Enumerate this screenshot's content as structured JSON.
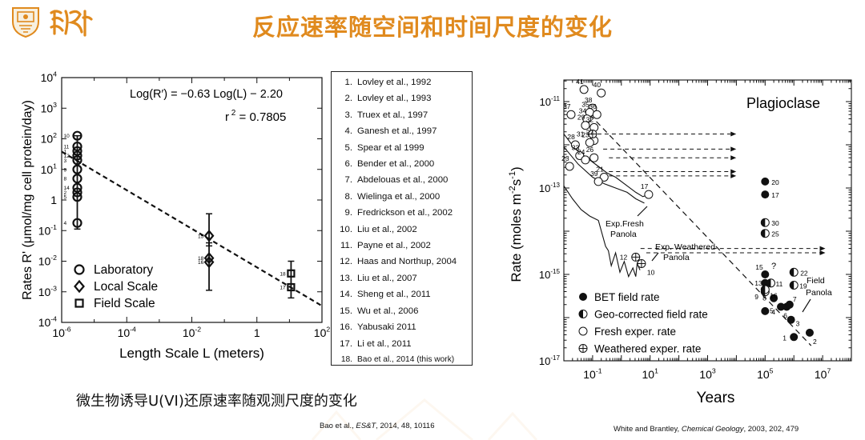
{
  "slide": {
    "title": "反应速率随空间和时间尺度的变化",
    "caption": "微生物诱导U(VI)还原速率随观测尺度的变化",
    "cite_left": {
      "prefix": "Bao et al., ",
      "journal": "ES&T",
      "suffix": ", 2014, 48, 10116"
    },
    "cite_right": {
      "prefix": "White and Brantley, ",
      "journal": "Chemical Geology",
      "suffix": ", 2003, 202, 479"
    }
  },
  "references": [
    {
      "num": "1.",
      "text": "Lovley et al., 1992"
    },
    {
      "num": "2.",
      "text": "Lovley et al., 1993"
    },
    {
      "num": "3.",
      "text": "Truex et al., 1997"
    },
    {
      "num": "4.",
      "text": "Ganesh et al., 1997"
    },
    {
      "num": "5.",
      "text": "Spear et al 1999"
    },
    {
      "num": "6.",
      "text": "Bender et al., 2000"
    },
    {
      "num": "7.",
      "text": "Abdelouas et al., 2000"
    },
    {
      "num": "8.",
      "text": "Wielinga et al., 2000"
    },
    {
      "num": "9.",
      "text": "Fredrickson et al., 2002"
    },
    {
      "num": "10.",
      "text": "Liu et al., 2002"
    },
    {
      "num": "11.",
      "text": "Payne et al., 2002"
    },
    {
      "num": "12.",
      "text": "Haas and Northup, 2004"
    },
    {
      "num": "13.",
      "text": "Liu et al., 2007"
    },
    {
      "num": "14.",
      "text": "Sheng et al., 2011"
    },
    {
      "num": "15.",
      "text": "Wu et al., 2006"
    },
    {
      "num": "16.",
      "text": "Yabusaki 2011"
    },
    {
      "num": "17.",
      "text": "Li et al., 2011"
    },
    {
      "num": "18.",
      "text": "Bao et al., 2014 (this work)"
    }
  ],
  "chart_data": [
    {
      "type": "scatter",
      "xlabel": "Length Scale L (meters)",
      "ylabel": "Rates R' (μmol/mg cell protein/day)",
      "x_scale": "log",
      "y_scale": "log",
      "xlim_exp": [
        -6,
        2
      ],
      "ylim_exp": [
        -4,
        4
      ],
      "x_ticks": [
        {
          "base": "10",
          "exp": "-6"
        },
        {
          "base": "10",
          "exp": "-4"
        },
        {
          "base": "10",
          "exp": "-2"
        },
        {
          "base": "1",
          "exp": ""
        },
        {
          "base": "10",
          "exp": "2"
        }
      ],
      "y_ticks": [
        {
          "base": "10",
          "exp": "4"
        },
        {
          "base": "10",
          "exp": "3"
        },
        {
          "base": "10",
          "exp": "2"
        },
        {
          "base": "10",
          "exp": "1"
        },
        {
          "base": "1",
          "exp": ""
        },
        {
          "base": "10",
          "exp": "-1"
        },
        {
          "base": "10",
          "exp": "-2"
        },
        {
          "base": "10",
          "exp": "-3"
        },
        {
          "base": "10",
          "exp": "-4"
        }
      ],
      "equation": "Log(R′) = −0.63 Log(L) − 2.20",
      "r2_prefix": "r",
      "r2_sup": "2",
      "r2_value": " = 0.7805",
      "fit": {
        "slope": -0.63,
        "intercept": -2.2
      },
      "legend": [
        {
          "marker": "circle",
          "label": "Laboratory"
        },
        {
          "marker": "diamond",
          "label": "Local Scale"
        },
        {
          "marker": "square",
          "label": "Field Scale"
        }
      ],
      "series": [
        {
          "name": "Laboratory",
          "marker": "circle",
          "points": [
            {
              "id": "10",
              "x_log": -5.52,
              "y_log": 2.1
            },
            {
              "id": "11",
              "x_log": -5.52,
              "y_log": 1.75
            },
            {
              "id": "1",
              "x_log": -5.52,
              "y_log": 1.6
            },
            {
              "id": "12",
              "x_log": -5.52,
              "y_log": 1.45
            },
            {
              "id": "3",
              "x_log": -5.52,
              "y_log": 1.3
            },
            {
              "id": "9",
              "x_log": -5.52,
              "y_log": 1.0
            },
            {
              "id": "8",
              "x_log": -5.52,
              "y_log": 0.7
            },
            {
              "id": "14",
              "x_log": -5.52,
              "y_log": 0.4
            },
            {
              "id": "2",
              "x_log": -5.52,
              "y_log": 0.25
            },
            {
              "id": "5",
              "x_log": -5.52,
              "y_log": 0.1
            },
            {
              "id": "4",
              "x_log": -5.52,
              "y_log": -0.75
            }
          ],
          "errorbar": {
            "x_log": -5.52,
            "y_log_low": -0.95,
            "y_log_high": 2.1
          }
        },
        {
          "name": "Local Scale",
          "marker": "diamond",
          "points": [
            {
              "id": "15",
              "x_log": -1.47,
              "y_log": -1.17
            },
            {
              "id": "18",
              "x_log": -1.47,
              "y_log": -1.9
            },
            {
              "id": "16",
              "x_log": -1.47,
              "y_log": -2.03
            }
          ],
          "errorbars": [
            {
              "x_log": -1.47,
              "y_log_low": -1.5,
              "y_log_high": -0.45
            },
            {
              "x_log": -1.47,
              "y_log_low": -2.95,
              "y_log_high": -1.4
            }
          ]
        },
        {
          "name": "Field Scale",
          "marker": "square",
          "points": [
            {
              "id": "18",
              "x_log": 1.05,
              "y_log": -2.4
            },
            {
              "id": "17",
              "x_log": 1.05,
              "y_log": -2.85
            }
          ],
          "errorbars": [
            {
              "x_log": 1.05,
              "y_log_low": -3.2,
              "y_log_high": -2.0
            }
          ]
        }
      ]
    },
    {
      "type": "scatter",
      "title": "Plagioclase",
      "xlabel": "Years",
      "ylabel": "Rate (moles m",
      "ylabel_sup1": "-2",
      "ylabel_mid": "s",
      "ylabel_sup2": "-1",
      "ylabel_end": ")",
      "x_scale": "log",
      "y_scale": "log",
      "xlim_exp": [
        -2,
        8
      ],
      "ylim_exp": [
        -17,
        -10.5
      ],
      "x_ticks": [
        {
          "base": "10",
          "exp": "-1"
        },
        {
          "base": "10",
          "exp": "1"
        },
        {
          "base": "10",
          "exp": "3"
        },
        {
          "base": "10",
          "exp": "5"
        },
        {
          "base": "10",
          "exp": "7"
        }
      ],
      "y_ticks": [
        {
          "base": "10",
          "exp": "-11"
        },
        {
          "base": "10",
          "exp": "-13"
        },
        {
          "base": "10",
          "exp": "-15"
        },
        {
          "base": "10",
          "exp": "-17"
        }
      ],
      "legend": [
        {
          "marker": "filled",
          "label": "BET field rate"
        },
        {
          "marker": "half",
          "label": "Geo-corrected field rate"
        },
        {
          "marker": "open",
          "label": "Fresh exper. rate"
        },
        {
          "marker": "cross",
          "label": "Weathered exper. rate"
        }
      ],
      "annotations": {
        "fresh_panola": [
          "Exp.Fresh",
          "Panola"
        ],
        "weathered_panola": [
          "Exp. Weathered",
          "Panola"
        ],
        "field_panola": [
          "Field",
          "Panola"
        ],
        "question": "?"
      },
      "open_points": [
        {
          "id": "41",
          "x": -1.3,
          "y": -10.72
        },
        {
          "id": "40",
          "x": -0.7,
          "y": -10.8
        },
        {
          "id": "37",
          "x": -1.75,
          "y": -11.3
        },
        {
          "id": "38",
          "x": -1.0,
          "y": -11.15
        },
        {
          "id": "35",
          "x": -1.1,
          "y": -11.25
        },
        {
          "id": "36",
          "x": -0.85,
          "y": -11.3
        },
        {
          "id": "34",
          "x": -1.2,
          "y": -11.4
        },
        {
          "id": "29",
          "x": -1.25,
          "y": -11.55
        },
        {
          "id": "32",
          "x": -0.95,
          "y": -11.6
        },
        {
          "id": "27",
          "x": -0.95,
          "y": -11.9
        },
        {
          "id": "23",
          "x": -1.1,
          "y": -11.95
        },
        {
          "id": "28",
          "x": -1.6,
          "y": -12.0
        },
        {
          "id": "33",
          "x": -1.45,
          "y": -12.25
        },
        {
          "id": "24",
          "x": -1.25,
          "y": -12.35
        },
        {
          "id": "26",
          "x": -0.95,
          "y": -12.3
        },
        {
          "id": "23b",
          "x": -1.8,
          "y": -12.5
        },
        {
          "id": "21",
          "x": -0.6,
          "y": -12.75
        },
        {
          "id": "39",
          "x": -0.8,
          "y": -12.85
        },
        {
          "id": "17",
          "x": 0.95,
          "y": -13.15
        }
      ],
      "cross_points": [
        {
          "id": "31",
          "x": -1.0,
          "y": -11.75
        },
        {
          "id": "12",
          "x": 0.5,
          "y": -14.6
        },
        {
          "id": "10",
          "x": 0.7,
          "y": -14.75
        }
      ],
      "filled_points": [
        {
          "id": "20",
          "x": 5.0,
          "y": -12.85
        },
        {
          "id": "17",
          "x": 5.0,
          "y": -13.15
        },
        {
          "id": "15",
          "x": 5.0,
          "y": -15.0
        },
        {
          "id": "13",
          "x": 5.0,
          "y": -15.2
        },
        {
          "id": "4",
          "x": 5.0,
          "y": -15.85
        },
        {
          "id": "8",
          "x": 5.3,
          "y": -15.55
        },
        {
          "id": "5",
          "x": 5.55,
          "y": -15.75
        },
        {
          "id": "6",
          "x": 5.75,
          "y": -15.75
        },
        {
          "id": "7",
          "x": 5.85,
          "y": -15.7
        },
        {
          "id": "3",
          "x": 5.9,
          "y": -16.05
        },
        {
          "id": "1",
          "x": 6.0,
          "y": -16.45
        },
        {
          "id": "2",
          "x": 6.55,
          "y": -16.35
        }
      ],
      "half_points": [
        {
          "id": "30",
          "x": 5.0,
          "y": -13.8
        },
        {
          "id": "25",
          "x": 5.0,
          "y": -14.05
        },
        {
          "id": "22",
          "x": 6.0,
          "y": -14.95
        },
        {
          "id": "11",
          "x": 5.2,
          "y": -15.2
        },
        {
          "id": "16",
          "x": 5.0,
          "y": -15.4
        },
        {
          "id": "9",
          "x": 5.0,
          "y": -15.35
        },
        {
          "id": "19",
          "x": 6.0,
          "y": -15.25
        }
      ]
    }
  ]
}
